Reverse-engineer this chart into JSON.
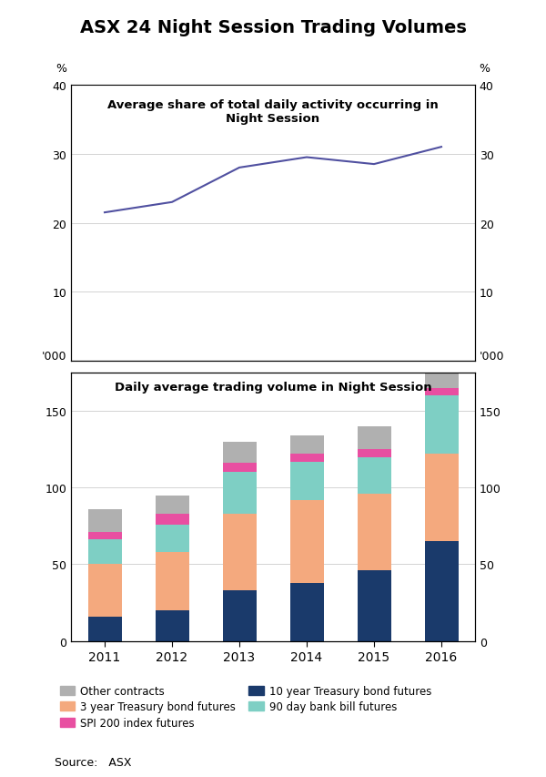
{
  "title": "ASX 24 Night Session Trading Volumes",
  "line_title": "Average share of total daily activity occurring in\nNight Session",
  "bar_title": "Daily average trading volume in Night Session",
  "years": [
    2011,
    2012,
    2013,
    2014,
    2015,
    2016
  ],
  "line_values": [
    21.5,
    23.0,
    28.0,
    29.5,
    28.5,
    31.0
  ],
  "bar_data": {
    "10yr_treasury": [
      16,
      20,
      33,
      38,
      46,
      65
    ],
    "3yr_treasury": [
      34,
      38,
      50,
      54,
      50,
      57
    ],
    "90day_bill": [
      16,
      18,
      27,
      25,
      24,
      38
    ],
    "spi200": [
      5,
      7,
      6,
      5,
      5,
      5
    ],
    "other": [
      15,
      12,
      14,
      12,
      15,
      10
    ]
  },
  "bar_colors": {
    "10yr_treasury": "#1a3a6b",
    "3yr_treasury": "#f4a97e",
    "90day_bill": "#7ecfc4",
    "spi200": "#e84fa1",
    "other": "#b0b0b0"
  },
  "line_color": "#5050a0",
  "line_ylim": [
    0,
    40
  ],
  "line_yticks": [
    10,
    20,
    30,
    40
  ],
  "bar_ylim": [
    0,
    175
  ],
  "bar_yticks": [
    0,
    50,
    100,
    150
  ],
  "legend_labels": {
    "other": "Other contracts",
    "3yr_treasury": "3 year Treasury bond futures",
    "spi200": "SPI 200 index futures",
    "10yr_treasury": "10 year Treasury bond futures",
    "90day_bill": "90 day bank bill futures"
  },
  "source": "Source:   ASX"
}
